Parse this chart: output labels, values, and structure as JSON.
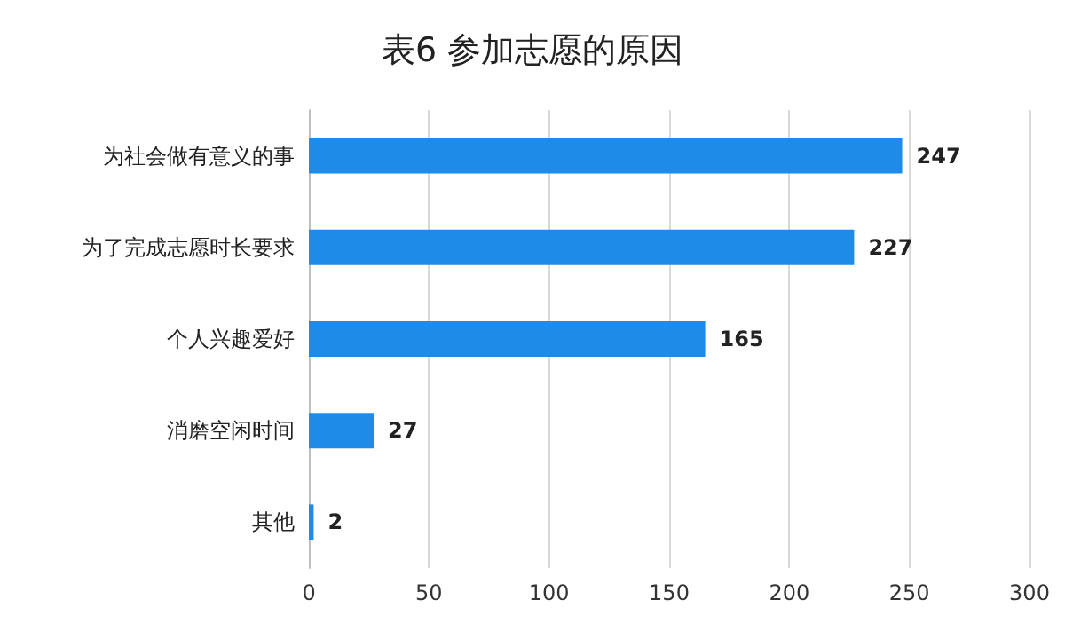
{
  "chart_data": {
    "type": "bar",
    "orientation": "horizontal",
    "title": "表6 参加志愿的原因",
    "categories": [
      "为社会做有意义的事",
      "为了完成志愿时长要求",
      "个人兴趣爱好",
      "消磨空闲时间",
      "其他"
    ],
    "values": [
      247,
      227,
      165,
      27,
      2
    ],
    "color": "#1f8be8",
    "data_labels": true,
    "xlim": [
      0,
      300
    ],
    "xticks": [
      0,
      50,
      100,
      150,
      200,
      250,
      300
    ],
    "grid": "x"
  }
}
